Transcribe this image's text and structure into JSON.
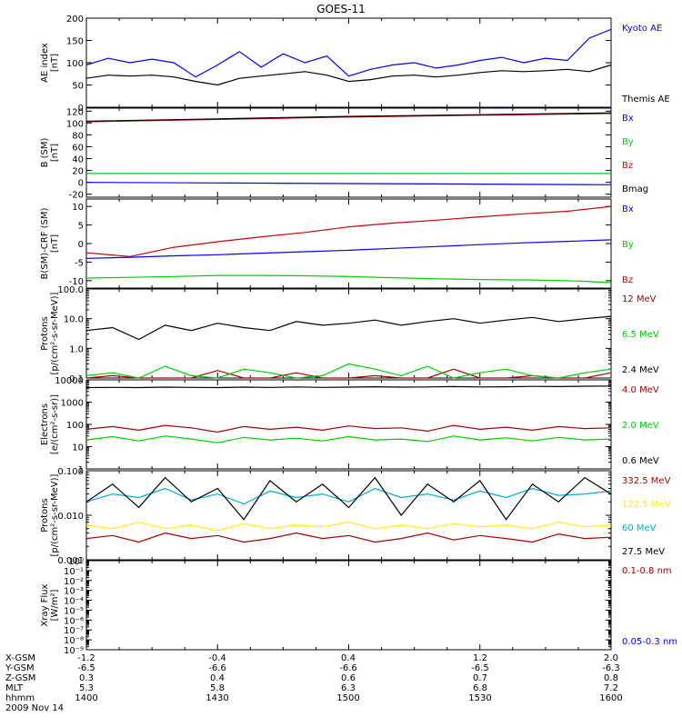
{
  "title": "GOES-11",
  "colors": {
    "black": "#000000",
    "blue": "#0000ff",
    "red": "#cc0000",
    "green": "#00cc00",
    "yellow": "#ffee00",
    "cyan": "#00aadd",
    "darkred": "#aa0000"
  },
  "footer": {
    "rows": [
      {
        "label": "X-GSM",
        "values": [
          "-1.2",
          "-0.4",
          "0.4",
          "1.2",
          "2.0"
        ]
      },
      {
        "label": "Y-GSM",
        "values": [
          "-6.5",
          "-6.6",
          "-6.6",
          "-6.5",
          "-6.3"
        ]
      },
      {
        "label": "Z-GSM",
        "values": [
          "0.3",
          "0.4",
          "0.6",
          "0.7",
          "0.8"
        ]
      },
      {
        "label": "MLT",
        "values": [
          "5.3",
          "5.8",
          "6.3",
          "6.8",
          "7.2"
        ]
      },
      {
        "label": "hhmm",
        "values": [
          "1400",
          "1430",
          "1500",
          "1530",
          "1600"
        ]
      }
    ],
    "date": "2009 Nov 14"
  },
  "chart_data": [
    {
      "type": "line",
      "panel": 1,
      "ylabel": [
        "AE index",
        "[nT]"
      ],
      "ylim": [
        0,
        200
      ],
      "yticks": [
        "0",
        "50",
        "100",
        "150",
        "200"
      ],
      "ytickvals": [
        0,
        50,
        100,
        150,
        200
      ],
      "x": [
        0,
        5,
        10,
        15,
        20,
        25,
        30,
        35,
        40,
        45,
        50,
        55,
        60,
        65,
        70,
        75,
        80,
        85,
        90,
        95,
        100,
        105,
        110,
        115,
        120
      ],
      "series": [
        {
          "name": "Kyoto AE",
          "color": "blue",
          "values": [
            95,
            110,
            100,
            108,
            100,
            68,
            95,
            125,
            90,
            120,
            100,
            115,
            70,
            85,
            95,
            100,
            88,
            95,
            105,
            112,
            100,
            110,
            105,
            155,
            175
          ]
        },
        {
          "name": "Themis AE",
          "color": "black",
          "values": [
            65,
            72,
            70,
            72,
            68,
            58,
            50,
            65,
            70,
            75,
            80,
            72,
            58,
            62,
            70,
            72,
            68,
            72,
            78,
            82,
            80,
            82,
            85,
            80,
            95
          ]
        }
      ]
    },
    {
      "type": "line",
      "panel": 2,
      "ylabel": [
        "B (SM)",
        "[nT]"
      ],
      "ylim": [
        -25,
        125
      ],
      "yticks": [
        "-20",
        "0",
        "20",
        "40",
        "60",
        "80",
        "100",
        "120"
      ],
      "ytickvals": [
        -20,
        0,
        20,
        40,
        60,
        80,
        100,
        120
      ],
      "x": [
        0,
        30,
        60,
        90,
        120
      ],
      "series": [
        {
          "name": "Bx",
          "color": "blue",
          "values": [
            0,
            -1,
            -2,
            -3,
            -4
          ]
        },
        {
          "name": "By",
          "color": "green",
          "values": [
            15,
            15,
            15,
            15,
            15
          ]
        },
        {
          "name": "Bz",
          "color": "red",
          "values": [
            102,
            106,
            110,
            113,
            116
          ]
        },
        {
          "name": "Bmag",
          "color": "black",
          "values": [
            103,
            107,
            111,
            114,
            117
          ]
        }
      ]
    },
    {
      "type": "line",
      "panel": 3,
      "ylabel": [
        "B(SM)-CRF (SM)",
        "[nT]"
      ],
      "ylim": [
        -12,
        12
      ],
      "yticks": [
        "-10",
        "-5",
        "0",
        "5",
        "10"
      ],
      "ytickvals": [
        -10,
        -5,
        0,
        5,
        10
      ],
      "x": [
        0,
        10,
        20,
        30,
        40,
        50,
        60,
        70,
        80,
        90,
        100,
        110,
        120
      ],
      "series": [
        {
          "name": "Bx",
          "color": "blue",
          "values": [
            -4,
            -3.7,
            -3.3,
            -3,
            -2.6,
            -2.2,
            -1.8,
            -1.3,
            -0.8,
            -0.3,
            0.2,
            0.6,
            1.0
          ]
        },
        {
          "name": "By",
          "color": "green",
          "values": [
            -9.3,
            -9.1,
            -8.9,
            -8.6,
            -8.6,
            -8.7,
            -8.9,
            -9.2,
            -9.5,
            -9.7,
            -9.8,
            -10.0,
            -10.5
          ]
        },
        {
          "name": "Bz",
          "color": "red",
          "values": [
            -2.5,
            -3.5,
            -1,
            0.5,
            1.8,
            3,
            4.5,
            5.5,
            6.3,
            7.2,
            8,
            8.7,
            10
          ]
        }
      ]
    },
    {
      "type": "line",
      "panel": 4,
      "log": true,
      "ylabel": [
        "Protons",
        "[p/(cm²-s-sr-MeV)]"
      ],
      "ylim": [
        0.1,
        100
      ],
      "yticks": [
        "0.1",
        "1.0",
        "10.0",
        "100.0"
      ],
      "ytickvals": [
        0.1,
        1,
        10,
        100
      ],
      "x": [
        0,
        6,
        12,
        18,
        24,
        30,
        36,
        42,
        48,
        54,
        60,
        66,
        72,
        78,
        84,
        90,
        96,
        102,
        108,
        114,
        120
      ],
      "series": [
        {
          "name": "12 MeV",
          "color": "darkred",
          "values": [
            0.1,
            0.12,
            0.1,
            0.1,
            0.1,
            0.18,
            0.1,
            0.1,
            0.15,
            0.1,
            0.1,
            0.12,
            0.1,
            0.1,
            0.2,
            0.1,
            0.1,
            0.12,
            0.1,
            0.1,
            0.15
          ]
        },
        {
          "name": "6.5 MeV",
          "color": "green",
          "values": [
            0.12,
            0.15,
            0.1,
            0.25,
            0.12,
            0.1,
            0.2,
            0.15,
            0.1,
            0.12,
            0.3,
            0.2,
            0.12,
            0.25,
            0.1,
            0.15,
            0.2,
            0.12,
            0.1,
            0.15,
            0.2
          ]
        },
        {
          "name": "2.4 MeV",
          "color": "black",
          "values": [
            4,
            5,
            2,
            6,
            4,
            7,
            5,
            4,
            8,
            6,
            7,
            9,
            6,
            8,
            10,
            7,
            9,
            11,
            8,
            10,
            12
          ]
        }
      ]
    },
    {
      "type": "line",
      "panel": 5,
      "log": true,
      "ylabel": [
        "Electrons",
        "[e/(cm²-s-sr)]"
      ],
      "ylim": [
        1,
        10000
      ],
      "yticks": [
        "1",
        "10",
        "100",
        "1000",
        "10000"
      ],
      "ytickvals": [
        1,
        10,
        100,
        1000,
        10000
      ],
      "x": [
        0,
        6,
        12,
        18,
        24,
        30,
        36,
        42,
        48,
        54,
        60,
        66,
        72,
        78,
        84,
        90,
        96,
        102,
        108,
        114,
        120
      ],
      "series": [
        {
          "name": "4.0 MeV",
          "color": "darkred",
          "values": [
            60,
            80,
            55,
            90,
            70,
            45,
            80,
            60,
            75,
            55,
            85,
            65,
            70,
            50,
            90,
            60,
            75,
            55,
            80,
            65,
            70
          ]
        },
        {
          "name": "2.0 MeV",
          "color": "green",
          "values": [
            20,
            28,
            18,
            30,
            22,
            15,
            26,
            20,
            24,
            18,
            28,
            20,
            22,
            17,
            30,
            20,
            25,
            18,
            26,
            20,
            22
          ]
        },
        {
          "name": "0.6 MeV",
          "color": "black",
          "values": [
            4500,
            4600,
            4500,
            4700,
            4600,
            4500,
            4700,
            4600,
            4800,
            4600,
            4700,
            4900,
            4700,
            4800,
            5000,
            4800,
            4900,
            5100,
            5000,
            5200,
            5300
          ]
        }
      ]
    },
    {
      "type": "line",
      "panel": 6,
      "log": true,
      "ylabel": [
        "Protons",
        "[p/(cm²-s-sr-MeV)]"
      ],
      "ylim": [
        0.001,
        0.1
      ],
      "yticks": [
        "0.001",
        "0.010",
        "0.100"
      ],
      "ytickvals": [
        0.001,
        0.01,
        0.1
      ],
      "x": [
        0,
        6,
        12,
        18,
        24,
        30,
        36,
        42,
        48,
        54,
        60,
        66,
        72,
        78,
        84,
        90,
        96,
        102,
        108,
        114,
        120
      ],
      "series": [
        {
          "name": "332.5 MeV",
          "color": "darkred",
          "values": [
            0.003,
            0.0035,
            0.0025,
            0.004,
            0.003,
            0.0035,
            0.0025,
            0.003,
            0.004,
            0.003,
            0.0035,
            0.0025,
            0.003,
            0.004,
            0.0028,
            0.0035,
            0.003,
            0.0025,
            0.0038,
            0.003,
            0.0032
          ]
        },
        {
          "name": "122.5 MeV",
          "color": "yellow",
          "values": [
            0.006,
            0.005,
            0.007,
            0.005,
            0.006,
            0.0045,
            0.0065,
            0.005,
            0.006,
            0.0055,
            0.007,
            0.005,
            0.006,
            0.005,
            0.0065,
            0.0055,
            0.006,
            0.005,
            0.007,
            0.0055,
            0.006
          ]
        },
        {
          "name": "60 MeV",
          "color": "cyan",
          "values": [
            0.02,
            0.03,
            0.025,
            0.04,
            0.022,
            0.03,
            0.018,
            0.035,
            0.025,
            0.03,
            0.02,
            0.04,
            0.025,
            0.03,
            0.022,
            0.035,
            0.025,
            0.04,
            0.028,
            0.03,
            0.035
          ]
        },
        {
          "name": "27.5 MeV",
          "color": "black",
          "values": [
            0.02,
            0.05,
            0.015,
            0.07,
            0.02,
            0.04,
            0.008,
            0.06,
            0.02,
            0.05,
            0.015,
            0.07,
            0.01,
            0.05,
            0.02,
            0.06,
            0.008,
            0.05,
            0.02,
            0.07,
            0.03
          ]
        }
      ]
    },
    {
      "type": "line",
      "panel": 7,
      "log": true,
      "ylabel": [
        "Xray Flux",
        "[W/m²]"
      ],
      "ylim": [
        1e-09,
        1
      ],
      "yticks": [
        "10⁻⁹",
        "10⁻⁸",
        "10⁻⁷",
        "10⁻⁶",
        "10⁻⁵",
        "10⁻⁴",
        "10⁻³",
        "10⁻²",
        "10⁻¹",
        "10⁰"
      ],
      "ytickvals": [
        1e-09,
        1e-08,
        1e-07,
        1e-06,
        1e-05,
        0.0001,
        0.001,
        0.01,
        0.1,
        1
      ],
      "x": [],
      "series": [
        {
          "name": "0.1-0.8 nm",
          "color": "darkred",
          "values": []
        },
        {
          "name": "0.05-0.3 nm",
          "color": "blue",
          "values": []
        }
      ]
    }
  ]
}
